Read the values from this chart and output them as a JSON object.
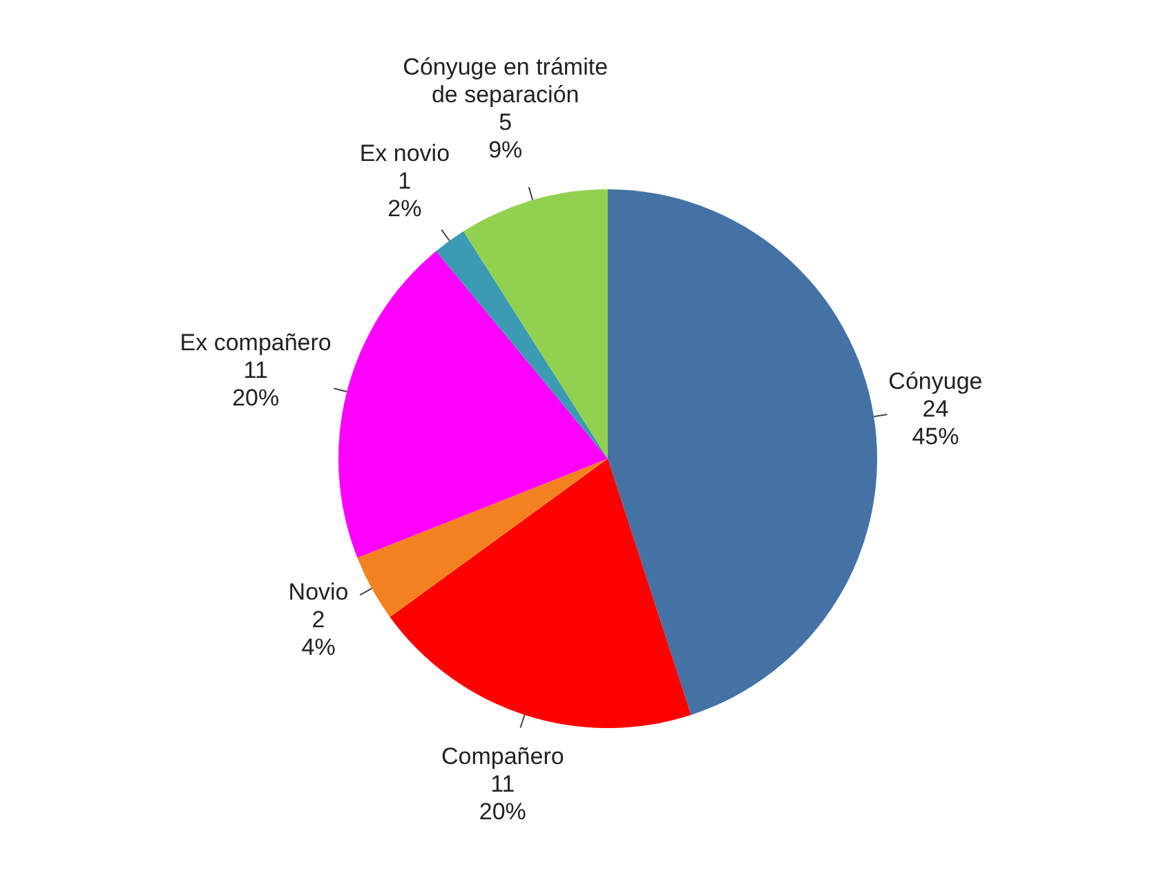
{
  "chart_data": {
    "type": "pie",
    "categories": [
      "Cónyuge",
      "Compañero",
      "Novio",
      "Ex compañero",
      "Ex novio",
      "Cónyuge en trámite de separación"
    ],
    "values": [
      45,
      20,
      4,
      20,
      2,
      9
    ],
    "colors": [
      "#4472a4",
      "#ff0000",
      "#f58220",
      "#ff00ff",
      "#3a9bb2",
      "#92d050"
    ],
    "value_labels": [
      "45%",
      "20%",
      "4%",
      "20%",
      "2%",
      "9%"
    ],
    "annotations": [
      "24",
      "11",
      "2",
      "11",
      "1",
      "5"
    ]
  }
}
